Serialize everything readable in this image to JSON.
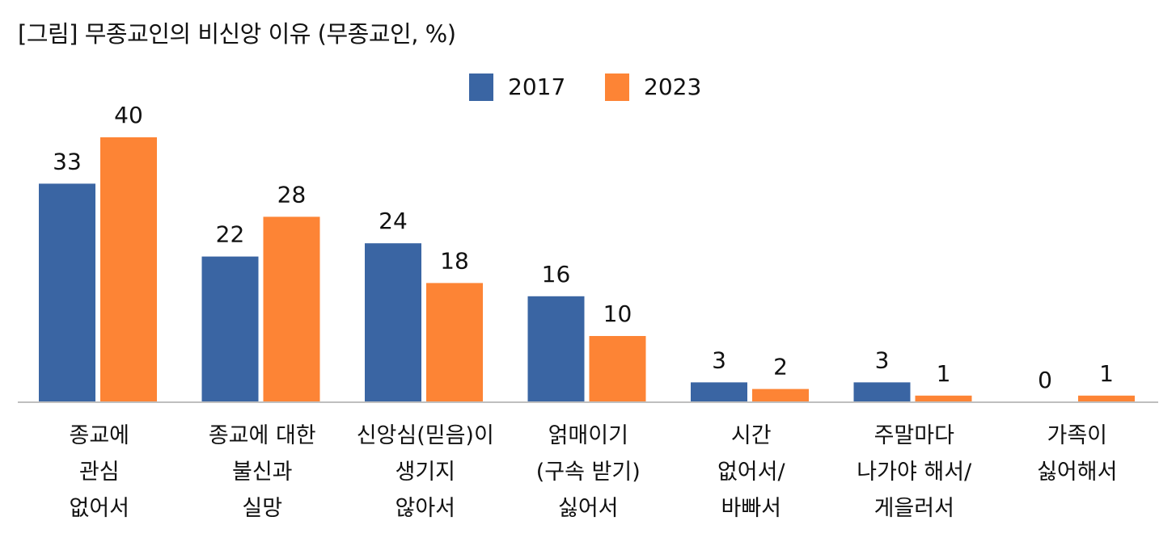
{
  "chart_data": {
    "type": "bar",
    "title": "[그림] 무종교인의 비신앙 이유 (무종교인, %)",
    "xlabel": "",
    "ylabel": "",
    "ylim": [
      0,
      40
    ],
    "grid": false,
    "legend_position": "top-center",
    "categories": [
      [
        "종교에",
        "관심",
        "없어서"
      ],
      [
        "종교에 대한",
        "불신과",
        "실망"
      ],
      [
        "신앙심(믿음)이",
        "생기지",
        "않아서"
      ],
      [
        "얽매이기",
        "(구속 받기)",
        "싫어서"
      ],
      [
        "시간",
        "없어서/",
        "바빠서"
      ],
      [
        "주말마다",
        "나가야 해서/",
        "게을러서"
      ],
      [
        "가족이",
        "싫어해서"
      ]
    ],
    "series": [
      {
        "name": "2017",
        "color": "#3a65a3",
        "values": [
          33,
          22,
          24,
          16,
          3,
          3,
          0
        ]
      },
      {
        "name": "2023",
        "color": "#fd8435",
        "values": [
          40,
          28,
          18,
          10,
          2,
          1,
          1
        ]
      }
    ]
  }
}
